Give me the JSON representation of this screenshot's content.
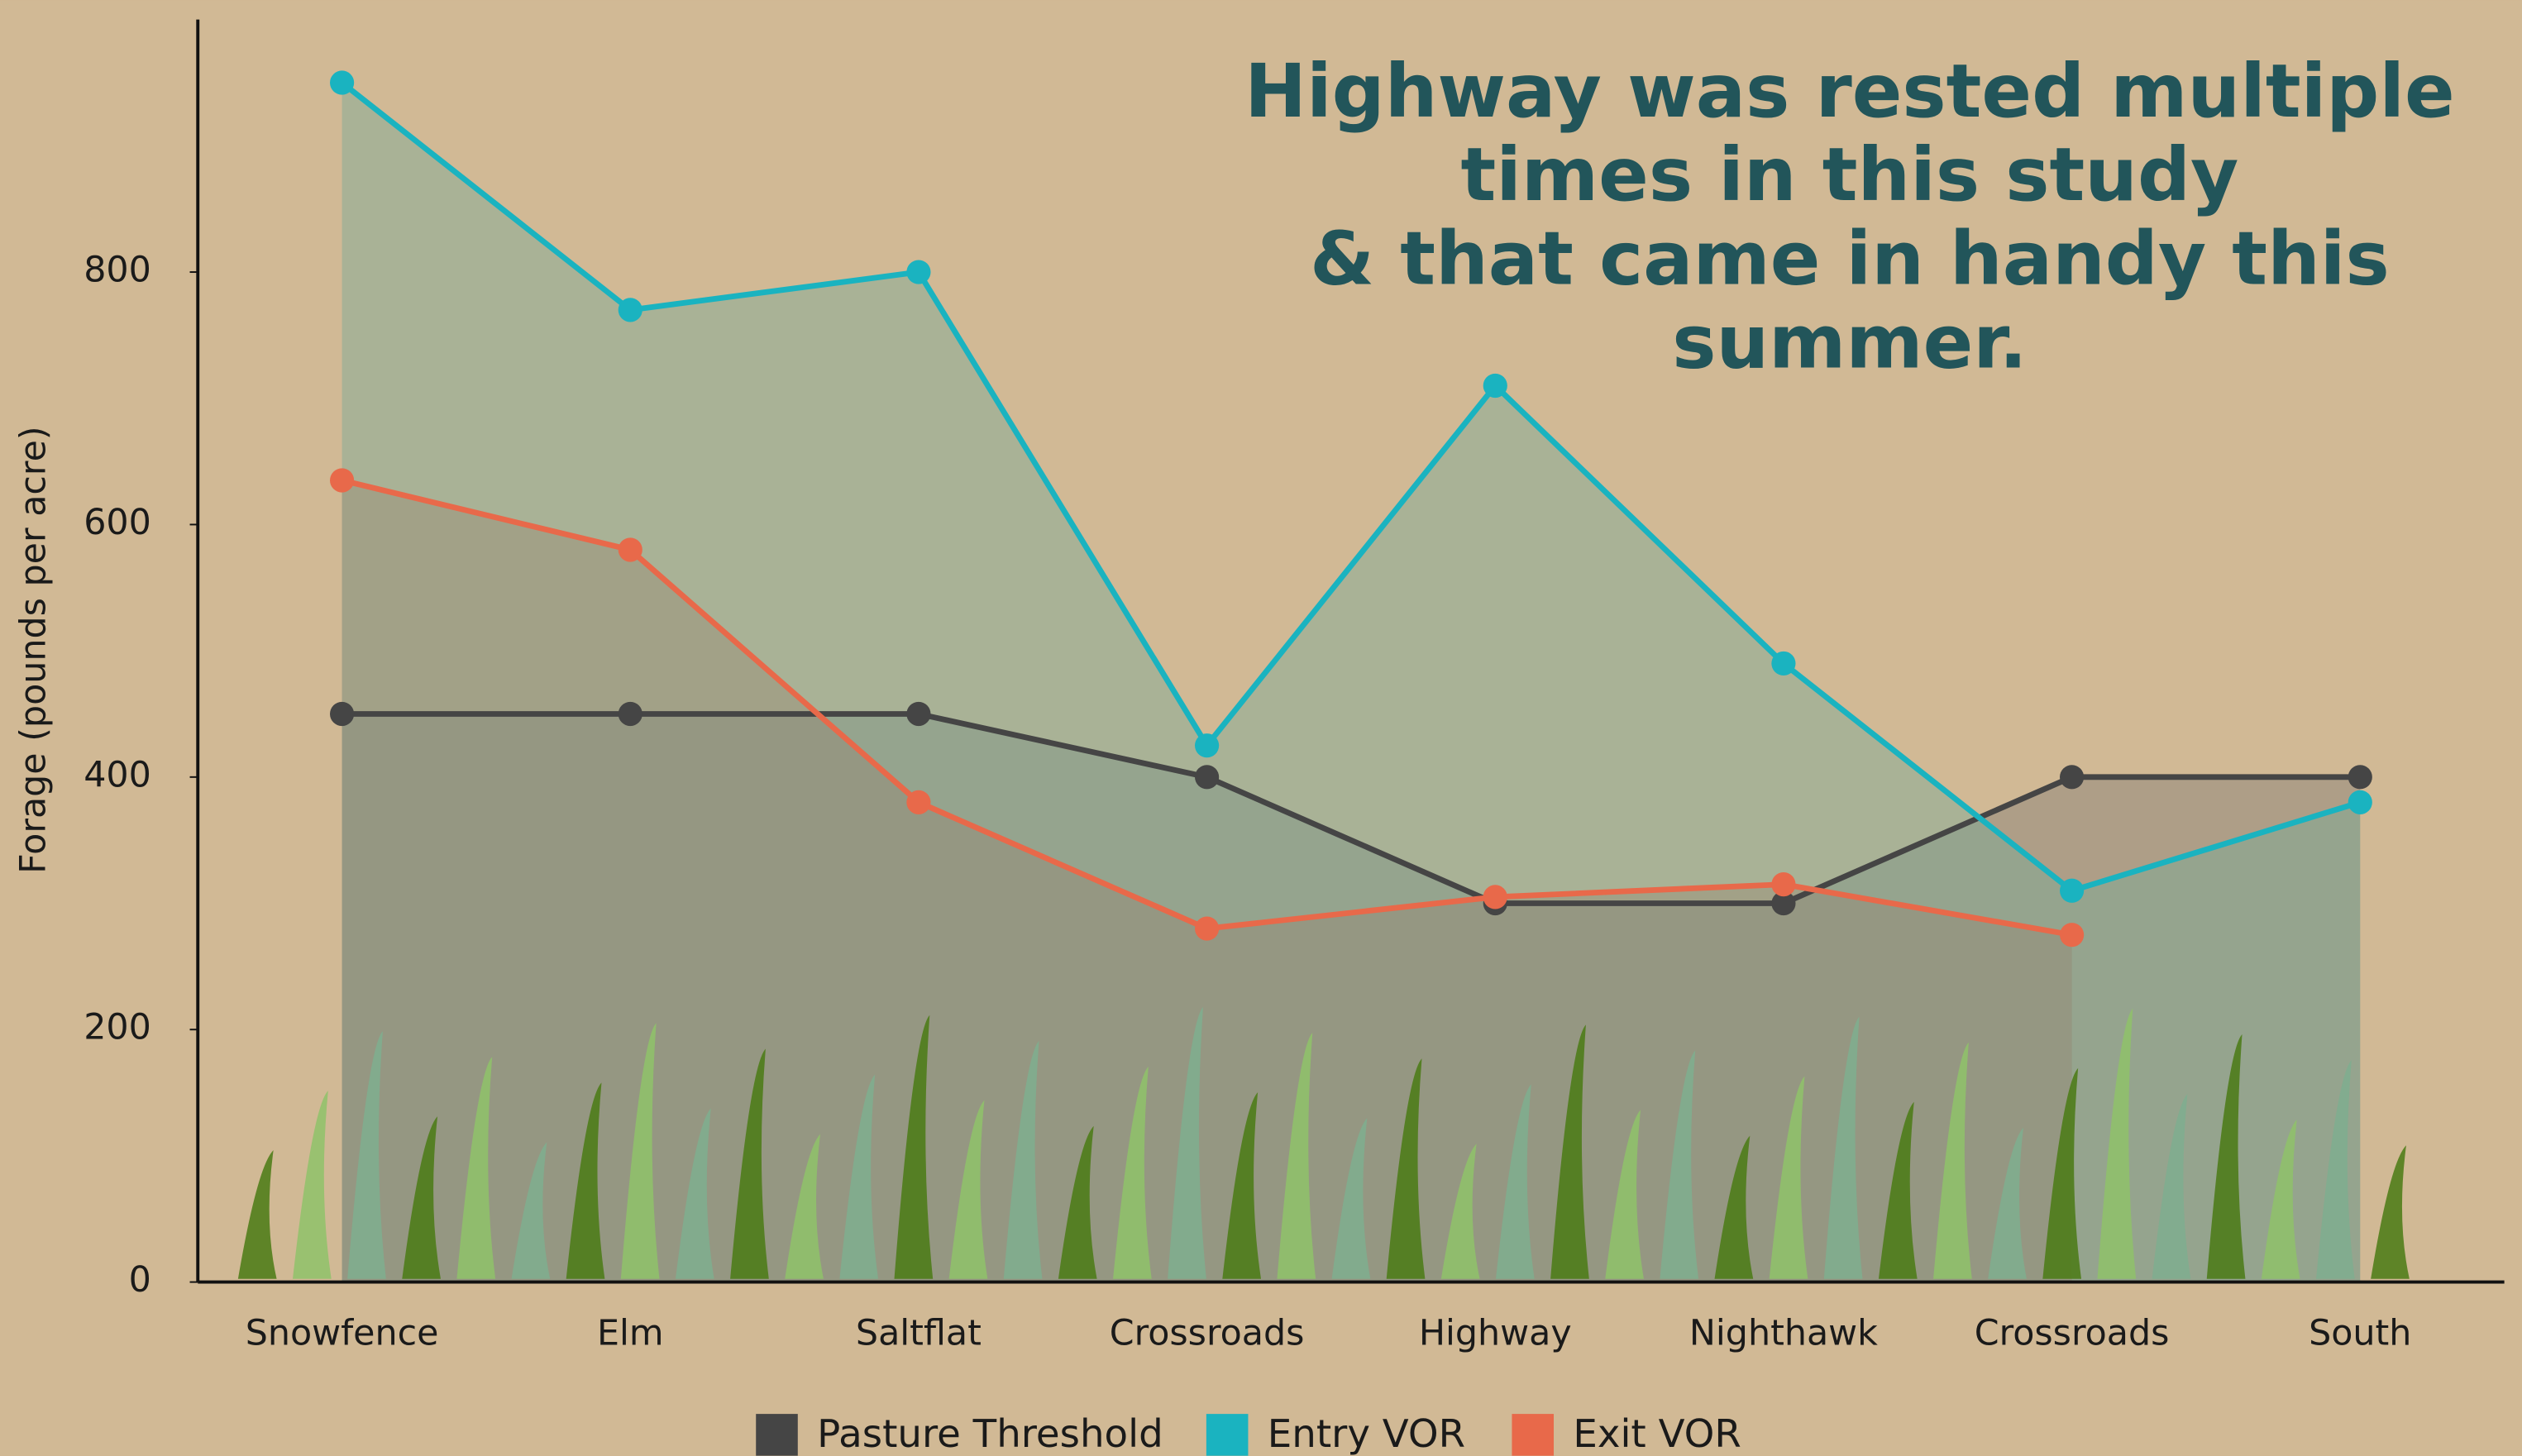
{
  "chart_data": {
    "type": "line",
    "title": "Highway was rested multiple\ntimes in this study\n& that came in handy this\nsummer.",
    "y_label": "Forage (pounds per acre)",
    "categories": [
      "Snowfence",
      "Elm",
      "Saltflat",
      "Crossroads",
      "Highway",
      "Nighthawk",
      "Crossroads",
      "South"
    ],
    "series": [
      {
        "name": "Pasture Threshold",
        "color": "#454545",
        "values": [
          450,
          450,
          450,
          400,
          300,
          300,
          400,
          400
        ]
      },
      {
        "name": "Entry VOR",
        "color": "#1ab3c0",
        "values": [
          950,
          770,
          800,
          425,
          710,
          490,
          310,
          380
        ]
      },
      {
        "name": "Exit VOR",
        "color": "#e8694a",
        "values": [
          635,
          580,
          380,
          280,
          305,
          315,
          275,
          null
        ]
      }
    ],
    "ylim": [
      0,
      1000
    ],
    "yticks": [
      0,
      200,
      400,
      600,
      800
    ],
    "grid": false,
    "area_fill": true,
    "legend": "bottom"
  }
}
